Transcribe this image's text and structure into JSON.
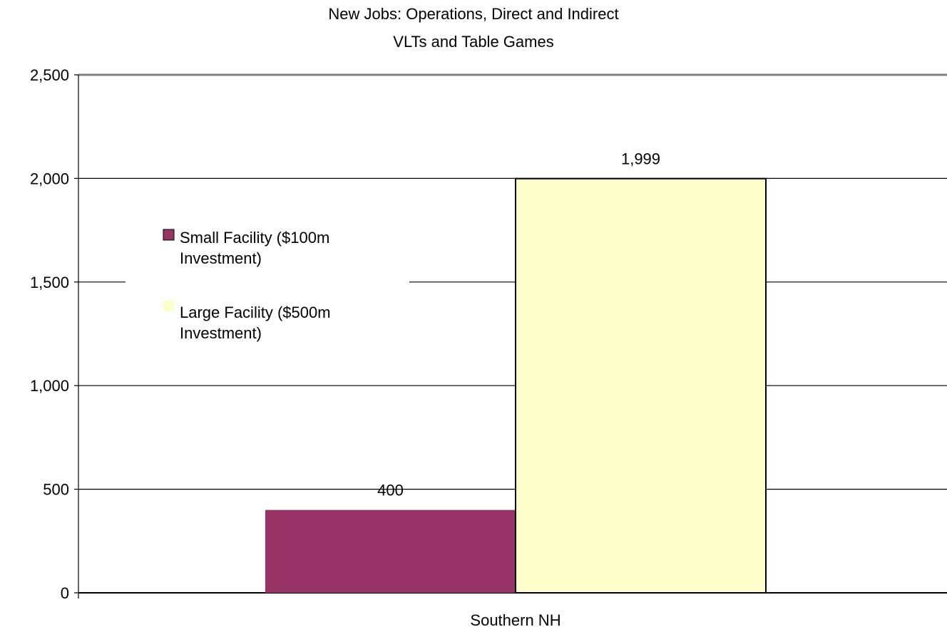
{
  "chart_data": {
    "type": "bar",
    "title": [
      "New Jobs:  Operations, Direct and Indirect",
      "VLTs and Table Games"
    ],
    "categories": [
      "Southern NH"
    ],
    "series": [
      {
        "name": "Small Facility ($100m Investment)",
        "values": [
          400
        ],
        "color": "#993366"
      },
      {
        "name": "Large Facility ($500m Investment)",
        "values": [
          1999
        ],
        "color": "#FFFFCC"
      }
    ],
    "data_labels": [
      "400",
      "1,999"
    ],
    "ylim": [
      0,
      2500
    ],
    "yticks": [
      0,
      500,
      1000,
      1500,
      2000,
      2500
    ],
    "ytick_labels": [
      "0",
      "500",
      "1,000",
      "1,500",
      "2,000",
      "2,500"
    ],
    "grid": true,
    "legend_position": "left",
    "legend_lines": [
      [
        "Small Facility ($100m",
        "Investment)"
      ],
      [
        "Large Facility ($500m",
        "Investment)"
      ]
    ]
  }
}
